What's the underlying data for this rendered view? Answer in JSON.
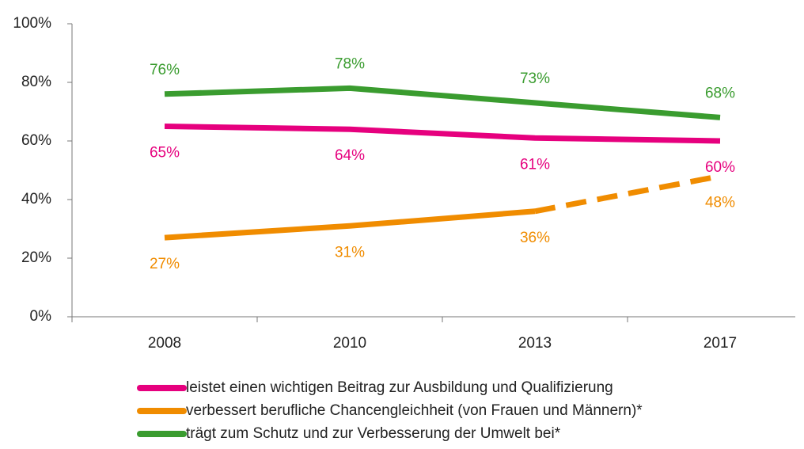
{
  "chart_data": {
    "type": "line",
    "categories": [
      "2008",
      "2010",
      "2013",
      "2017"
    ],
    "series": [
      {
        "name": "leistet einen wichtigen Beitrag zur Ausbildung und Qualifizierung",
        "color": "#e6007e",
        "values": [
          65,
          64,
          61,
          60
        ],
        "value_labels": [
          "65%",
          "64%",
          "61%",
          "60%"
        ],
        "label_position": "below"
      },
      {
        "name": "verbessert berufliche Chancengleichheit (von Frauen und Männern)*",
        "color": "#f08c00",
        "values": [
          27,
          31,
          36,
          48
        ],
        "value_labels": [
          "27%",
          "31%",
          "36%",
          "48%"
        ],
        "label_position": "below",
        "dash_from": 2
      },
      {
        "name": "trägt zum Schutz und zur Verbesserung der Umwelt bei*",
        "color": "#3a9c2f",
        "values": [
          76,
          78,
          73,
          68
        ],
        "value_labels": [
          "76%",
          "78%",
          "73%",
          "68%"
        ],
        "label_position": "above"
      }
    ],
    "ylim": [
      0,
      100
    ],
    "yticks": [
      {
        "value": 0,
        "label": "0%"
      },
      {
        "value": 20,
        "label": "20%"
      },
      {
        "value": 40,
        "label": "40%"
      },
      {
        "value": 60,
        "label": "60%"
      },
      {
        "value": 80,
        "label": "80%"
      },
      {
        "value": 100,
        "label": "100%"
      }
    ],
    "grid": false,
    "legend": "bottom"
  }
}
